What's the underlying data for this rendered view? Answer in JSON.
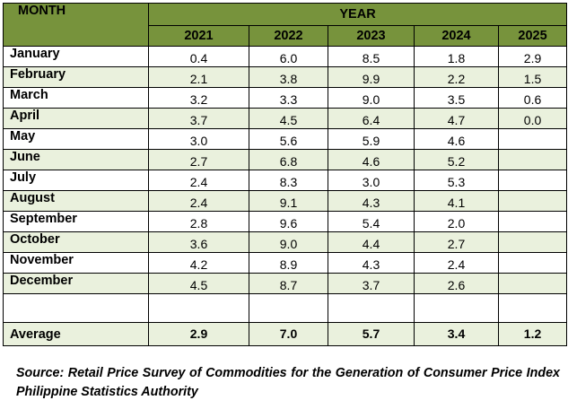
{
  "header": {
    "month_label": "MONTH",
    "year_label": "YEAR",
    "years": [
      "2021",
      "2022",
      "2023",
      "2024",
      "2025"
    ]
  },
  "rows": [
    {
      "month": "January",
      "values": [
        "0.4",
        "6.0",
        "8.5",
        "1.8",
        "2.9"
      ]
    },
    {
      "month": "February",
      "values": [
        "2.1",
        "3.8",
        "9.9",
        "2.2",
        "1.5"
      ]
    },
    {
      "month": "March",
      "values": [
        "3.2",
        "3.3",
        "9.0",
        "3.5",
        "0.6"
      ]
    },
    {
      "month": "April",
      "values": [
        "3.7",
        "4.5",
        "6.4",
        "4.7",
        "0.0"
      ]
    },
    {
      "month": "May",
      "values": [
        "3.0",
        "5.6",
        "5.9",
        "4.6",
        ""
      ]
    },
    {
      "month": "June",
      "values": [
        "2.7",
        "6.8",
        "4.6",
        "5.2",
        ""
      ]
    },
    {
      "month": "July",
      "values": [
        "2.4",
        "8.3",
        "3.0",
        "5.3",
        ""
      ]
    },
    {
      "month": "August",
      "values": [
        "2.4",
        "9.1",
        "4.3",
        "4.1",
        ""
      ]
    },
    {
      "month": "September",
      "values": [
        "2.8",
        "9.6",
        "5.4",
        "2.0",
        ""
      ]
    },
    {
      "month": "October",
      "values": [
        "3.6",
        "9.0",
        "4.4",
        "2.7",
        ""
      ]
    },
    {
      "month": "November",
      "values": [
        "4.2",
        "8.9",
        "4.3",
        "2.4",
        ""
      ]
    },
    {
      "month": "December",
      "values": [
        "4.5",
        "8.7",
        "3.7",
        "2.6",
        ""
      ]
    }
  ],
  "average": {
    "label": "Average",
    "values": [
      "2.9",
      "7.0",
      "5.7",
      "3.4",
      "1.2"
    ]
  },
  "source": "Source: Retail Price Survey of Commodities for the Generation of Consumer Price Index Philippine Statistics Authority",
  "colors": {
    "header_green": "#77933c",
    "stripe_green": "#eaf1dd"
  }
}
